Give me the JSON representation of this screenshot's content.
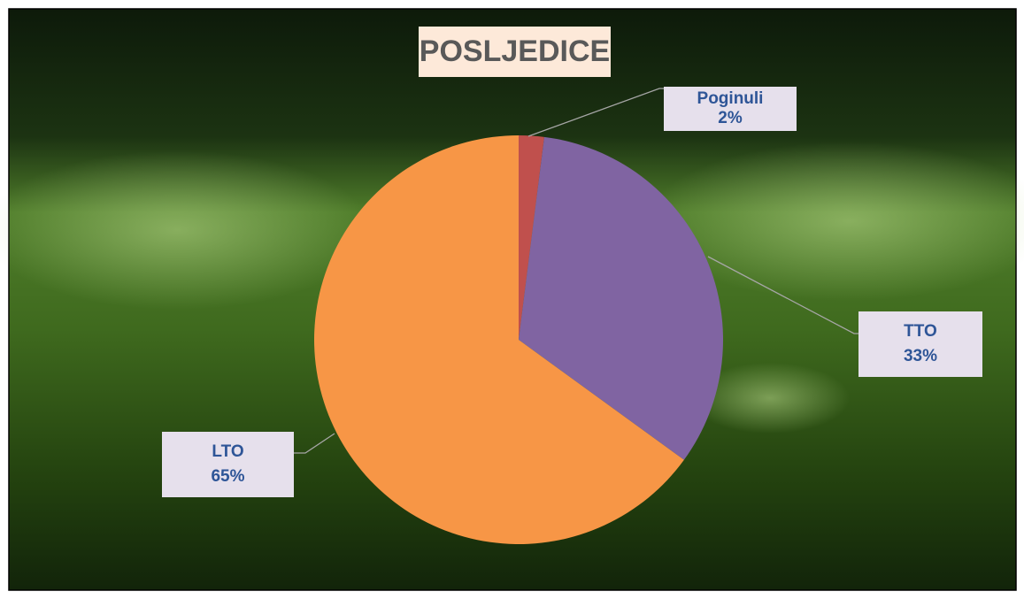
{
  "chart_data": {
    "type": "pie",
    "title": "POSLJEDICE",
    "categories": [
      "Poginuli",
      "TTO",
      "LTO"
    ],
    "values": [
      2,
      33,
      65
    ],
    "value_labels": [
      "2%",
      "33%",
      "65%"
    ],
    "colors": [
      "#c0504d",
      "#8064a2",
      "#f79646"
    ]
  }
}
